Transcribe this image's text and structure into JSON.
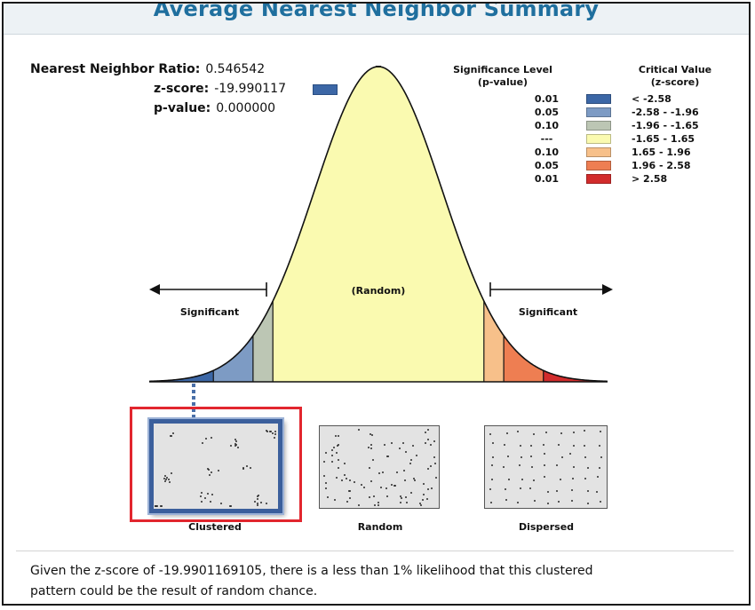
{
  "title": "Average Nearest Neighbor Summary",
  "stats": {
    "ratio_label": "Nearest Neighbor Ratio:",
    "ratio_value": "0.546542",
    "z_label": "z-score:",
    "z_value": "-19.990117",
    "p_label": "p-value:",
    "p_value": "0.000000"
  },
  "legend": {
    "sig_header_1": "Significance Level",
    "sig_header_2": "(p-value)",
    "crit_header_1": "Critical Value",
    "crit_header_2": "(z-score)",
    "rows": [
      {
        "p": "0.01",
        "z": "< -2.58",
        "color": "#3c67a6"
      },
      {
        "p": "0.05",
        "z": "-2.58 - -1.96",
        "color": "#7d9bc4"
      },
      {
        "p": "0.10",
        "z": "-1.96 - -1.65",
        "color": "#bcc6b4"
      },
      {
        "p": "---",
        "z": "-1.65 - 1.65",
        "color": "#fafab0"
      },
      {
        "p": "0.10",
        "z": "1.65 - 1.96",
        "color": "#f7c08a"
      },
      {
        "p": "0.05",
        "z": "1.96 - 2.58",
        "color": "#ee7e52"
      },
      {
        "p": "0.01",
        "z": "> 2.58",
        "color": "#d22c2c"
      }
    ]
  },
  "curve": {
    "random_label": "(Random)",
    "left_label": "Significant",
    "right_label": "Significant"
  },
  "patterns": {
    "clustered": "Clustered",
    "random": "Random",
    "dispersed": "Dispersed",
    "selected": "clustered"
  },
  "footer": {
    "line1": "Given the z-score of -19.9901169105, there is a less than 1% likelihood that this clustered",
    "line2": "pattern could be the result of random chance."
  },
  "colors": {
    "title": "#1f6f9e",
    "highlight_border": "#e2262e",
    "selected_panel_border": "#3b5f9c"
  }
}
